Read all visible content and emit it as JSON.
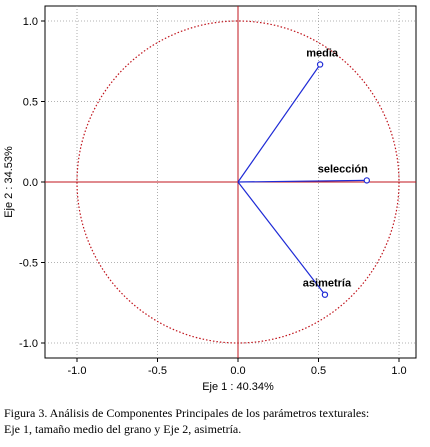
{
  "chart_data": {
    "type": "scatter",
    "title": "",
    "xlabel": "Eje 1 : 40.34%",
    "ylabel": "Eje 2 : 34.53%",
    "xlim": [
      -1.0,
      1.0
    ],
    "ylim": [
      -1.0,
      1.0
    ],
    "xticks": [
      "-1.0",
      "-0.5",
      "0.0",
      "0.5",
      "1.0"
    ],
    "yticks": [
      "1.0",
      "0.5",
      "0.0",
      "-0.5",
      "-1.0"
    ],
    "grid": true,
    "unit_circle": true,
    "points": [
      {
        "name": "media",
        "x": 0.51,
        "y": 0.73
      },
      {
        "name": "selección",
        "x": 0.8,
        "y": 0.01
      },
      {
        "name": "asimetría",
        "x": 0.54,
        "y": -0.7
      }
    ],
    "colors": {
      "vectors": "#1f2bd6",
      "axes": "#c0141c",
      "circle": "#c0141c",
      "grid": "#9a9a9a"
    }
  },
  "caption": {
    "line1": "Figura 3. Análisis de Componentes Principales de los parámetros texturales:",
    "line2": "Eje 1, tamaño medio del grano y Eje 2, asimetría."
  }
}
